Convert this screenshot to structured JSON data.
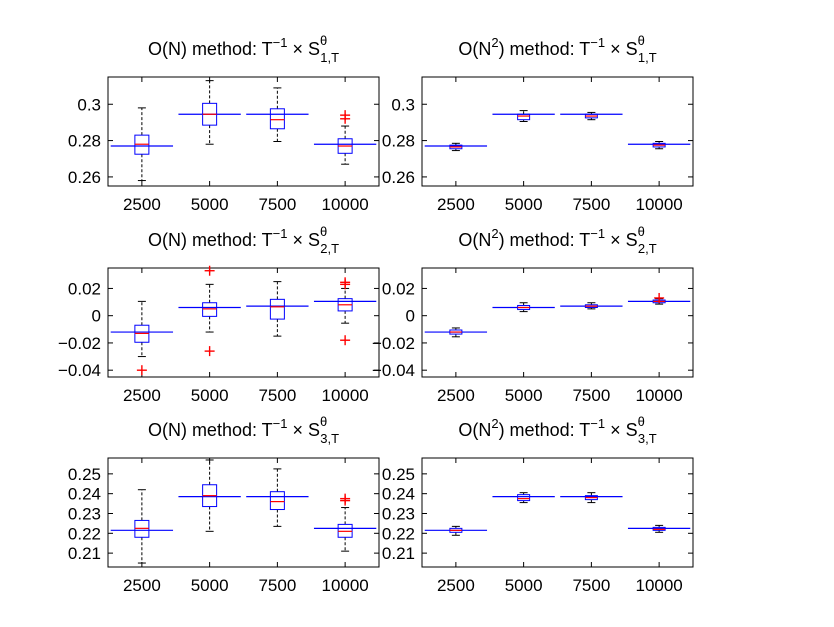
{
  "chart_data": [
    {
      "type": "boxplot",
      "title": {
        "prefix": "O(N) method: T",
        "sup1": "−1",
        "mid": " × S",
        "sup2": "θ",
        "sub": "1,T"
      },
      "categories": [
        "2500",
        "5000",
        "7500",
        "10000"
      ],
      "ylim": [
        0.255,
        0.315
      ],
      "yticks": [
        0.26,
        0.28,
        0.3
      ],
      "ytick_labels": [
        "0.26",
        "0.28",
        "0.3"
      ],
      "reference": [
        0.277,
        0.2945,
        0.2945,
        0.278
      ],
      "boxes": [
        {
          "whisker_low": 0.258,
          "q1": 0.2725,
          "median": 0.278,
          "q3": 0.283,
          "whisker_high": 0.298,
          "outliers": []
        },
        {
          "whisker_low": 0.278,
          "q1": 0.2885,
          "median": 0.2945,
          "q3": 0.3005,
          "whisker_high": 0.313,
          "outliers": []
        },
        {
          "whisker_low": 0.2795,
          "q1": 0.2865,
          "median": 0.2915,
          "q3": 0.2975,
          "whisker_high": 0.309,
          "outliers": []
        },
        {
          "whisker_low": 0.267,
          "q1": 0.273,
          "median": 0.277,
          "q3": 0.281,
          "whisker_high": 0.288,
          "outliers": [
            0.292,
            0.294
          ]
        }
      ]
    },
    {
      "type": "boxplot",
      "title": {
        "prefix": "O(N",
        "sup0": "2",
        "prefix2": ") method: T",
        "sup1": "−1",
        "mid": " × S",
        "sup2": "θ",
        "sub": "1,T"
      },
      "categories": [
        "2500",
        "5000",
        "7500",
        "10000"
      ],
      "ylim": [
        0.255,
        0.315
      ],
      "yticks": [
        0.26,
        0.28,
        0.3
      ],
      "ytick_labels": [
        "0.26",
        "0.28",
        "0.3"
      ],
      "reference": [
        0.277,
        0.2945,
        0.2945,
        0.278
      ],
      "boxes": [
        {
          "whisker_low": 0.2745,
          "q1": 0.2755,
          "median": 0.2765,
          "q3": 0.2775,
          "whisker_high": 0.2785,
          "outliers": []
        },
        {
          "whisker_low": 0.2905,
          "q1": 0.2915,
          "median": 0.2935,
          "q3": 0.2945,
          "whisker_high": 0.2965,
          "outliers": []
        },
        {
          "whisker_low": 0.2915,
          "q1": 0.2925,
          "median": 0.2935,
          "q3": 0.2945,
          "whisker_high": 0.2955,
          "outliers": []
        },
        {
          "whisker_low": 0.2755,
          "q1": 0.2765,
          "median": 0.2775,
          "q3": 0.2785,
          "whisker_high": 0.2795,
          "outliers": []
        }
      ]
    },
    {
      "type": "boxplot",
      "title": {
        "prefix": "O(N) method: T",
        "sup1": "−1",
        "mid": " × S",
        "sup2": "θ",
        "sub": "2,T"
      },
      "categories": [
        "2500",
        "5000",
        "7500",
        "10000"
      ],
      "ylim": [
        -0.045,
        0.035
      ],
      "yticks": [
        -0.04,
        -0.02,
        0,
        0.02
      ],
      "ytick_labels": [
        "−0.04",
        "−0.02",
        "0",
        "0.02"
      ],
      "reference": [
        -0.012,
        0.006,
        0.007,
        0.0105
      ],
      "boxes": [
        {
          "whisker_low": -0.03,
          "q1": -0.0195,
          "median": -0.013,
          "q3": -0.007,
          "whisker_high": 0.0105,
          "outliers": [
            -0.04
          ]
        },
        {
          "whisker_low": -0.012,
          "q1": -0.0005,
          "median": 0.005,
          "q3": 0.0095,
          "whisker_high": 0.023,
          "outliers": [
            0.033,
            -0.026
          ]
        },
        {
          "whisker_low": -0.015,
          "q1": -0.0025,
          "median": 0.0065,
          "q3": 0.012,
          "whisker_high": 0.025,
          "outliers": []
        },
        {
          "whisker_low": -0.0055,
          "q1": 0.0035,
          "median": 0.008,
          "q3": 0.0125,
          "whisker_high": 0.02,
          "outliers": [
            0.023,
            0.0245,
            -0.018
          ]
        }
      ]
    },
    {
      "type": "boxplot",
      "title": {
        "prefix": "O(N",
        "sup0": "2",
        "prefix2": ") method: T",
        "sup1": "−1",
        "mid": " × S",
        "sup2": "θ",
        "sub": "2,T"
      },
      "categories": [
        "2500",
        "5000",
        "7500",
        "10000"
      ],
      "ylim": [
        -0.045,
        0.035
      ],
      "yticks": [
        -0.04,
        -0.02,
        0,
        0.02
      ],
      "ytick_labels": [
        "−0.04",
        "−0.02",
        "0",
        "0.02"
      ],
      "reference": [
        -0.012,
        0.006,
        0.007,
        0.0105
      ],
      "boxes": [
        {
          "whisker_low": -0.0155,
          "q1": -0.0135,
          "median": -0.012,
          "q3": -0.0105,
          "whisker_high": -0.009,
          "outliers": []
        },
        {
          "whisker_low": 0.003,
          "q1": 0.0045,
          "median": 0.006,
          "q3": 0.0075,
          "whisker_high": 0.0095,
          "outliers": []
        },
        {
          "whisker_low": 0.005,
          "q1": 0.006,
          "median": 0.007,
          "q3": 0.008,
          "whisker_high": 0.0095,
          "outliers": []
        },
        {
          "whisker_low": 0.0085,
          "q1": 0.0095,
          "median": 0.0105,
          "q3": 0.0115,
          "whisker_high": 0.0125,
          "outliers": [
            0.013
          ]
        }
      ]
    },
    {
      "type": "boxplot",
      "title": {
        "prefix": "O(N) method: T",
        "sup1": "−1",
        "mid": " × S",
        "sup2": "θ",
        "sub": "3,T"
      },
      "categories": [
        "2500",
        "5000",
        "7500",
        "10000"
      ],
      "ylim": [
        0.203,
        0.258
      ],
      "yticks": [
        0.21,
        0.22,
        0.23,
        0.24,
        0.25
      ],
      "ytick_labels": [
        "0.21",
        "0.22",
        "0.23",
        "0.24",
        "0.25"
      ],
      "reference": [
        0.2215,
        0.2385,
        0.2385,
        0.2225
      ],
      "boxes": [
        {
          "whisker_low": 0.205,
          "q1": 0.218,
          "median": 0.2225,
          "q3": 0.2265,
          "whisker_high": 0.242,
          "outliers": []
        },
        {
          "whisker_low": 0.221,
          "q1": 0.2335,
          "median": 0.239,
          "q3": 0.2445,
          "whisker_high": 0.257,
          "outliers": []
        },
        {
          "whisker_low": 0.2235,
          "q1": 0.232,
          "median": 0.236,
          "q3": 0.241,
          "whisker_high": 0.2525,
          "outliers": []
        },
        {
          "whisker_low": 0.211,
          "q1": 0.218,
          "median": 0.221,
          "q3": 0.2245,
          "whisker_high": 0.233,
          "outliers": [
            0.2365,
            0.2375
          ]
        }
      ]
    },
    {
      "type": "boxplot",
      "title": {
        "prefix": "O(N",
        "sup0": "2",
        "prefix2": ") method: T",
        "sup1": "−1",
        "mid": " × S",
        "sup2": "θ",
        "sub": "3,T"
      },
      "categories": [
        "2500",
        "5000",
        "7500",
        "10000"
      ],
      "ylim": [
        0.203,
        0.258
      ],
      "yticks": [
        0.21,
        0.22,
        0.23,
        0.24,
        0.25
      ],
      "ytick_labels": [
        "0.21",
        "0.22",
        "0.23",
        "0.24",
        "0.25"
      ],
      "reference": [
        0.2215,
        0.2385,
        0.2385,
        0.2225
      ],
      "boxes": [
        {
          "whisker_low": 0.219,
          "q1": 0.2205,
          "median": 0.2215,
          "q3": 0.2225,
          "whisker_high": 0.2235,
          "outliers": []
        },
        {
          "whisker_low": 0.2355,
          "q1": 0.2365,
          "median": 0.2375,
          "q3": 0.2395,
          "whisker_high": 0.2405,
          "outliers": []
        },
        {
          "whisker_low": 0.2355,
          "q1": 0.237,
          "median": 0.238,
          "q3": 0.239,
          "whisker_high": 0.2405,
          "outliers": []
        },
        {
          "whisker_low": 0.2205,
          "q1": 0.2215,
          "median": 0.222,
          "q3": 0.223,
          "whisker_high": 0.224,
          "outliers": []
        }
      ]
    }
  ],
  "colors": {
    "axis": "#000000",
    "box": "#0000ff",
    "median": "#ff0000",
    "outlier": "#ff0000",
    "reference": "#0000ff",
    "whisker": "#000000"
  }
}
